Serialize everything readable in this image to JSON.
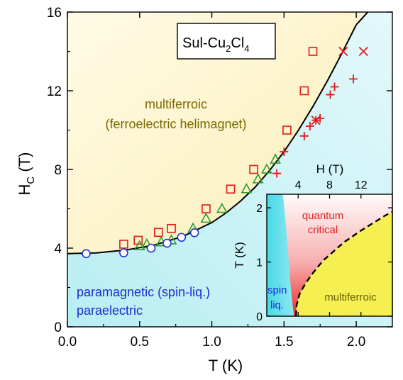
{
  "chart_data": [
    {
      "type": "scatter",
      "title": "Sul-Cu2Cl4",
      "xlabel": "T (K)",
      "ylabel": "HC (T)",
      "xlim": [
        0,
        2.25
      ],
      "ylim": [
        0,
        16
      ],
      "xticks": [
        0.0,
        0.5,
        1.0,
        1.5,
        2.0
      ],
      "xtick_labels": [
        "0.0",
        "0.5",
        "1.0",
        "1.5",
        "2.0"
      ],
      "yticks": [
        0,
        4,
        8,
        12,
        16
      ],
      "ytick_labels": [
        "0",
        "4",
        "8",
        "12",
        "16"
      ],
      "grid": false,
      "region_labels": {
        "multiferroic_line1": "multiferroic",
        "multiferroic_line2": "(ferroelectric helimagnet)",
        "paramagnetic_line1": "paramagnetic (spin-liq.)",
        "paramagnetic_line2": "paraelectric"
      },
      "colors": {
        "multiferroic_region": "#fdf6cc",
        "paramagnetic_region": "#c9f1f4",
        "boundary": "#000000",
        "squares": "#e01b1b",
        "plus": "#e01b1b",
        "cross": "#e01b1b",
        "triangles": "#2e9a2e",
        "circles": "#2233cc",
        "multiferroic_text": "#7a6a00",
        "paramagnetic_text": "#1c2ad8"
      },
      "boundary_curve": {
        "x": [
          0.0,
          0.2,
          0.4,
          0.6,
          0.8,
          1.0,
          1.1,
          1.2,
          1.3,
          1.4,
          1.5,
          1.6,
          1.7,
          1.8,
          1.9,
          2.0,
          2.08
        ],
        "y": [
          3.72,
          3.76,
          3.9,
          4.15,
          4.6,
          5.3,
          5.8,
          6.4,
          7.1,
          7.95,
          8.9,
          10.0,
          11.2,
          12.5,
          13.9,
          15.35,
          16.0
        ]
      },
      "series": [
        {
          "marker": "square",
          "x": [
            0.39,
            0.49,
            0.63,
            0.72,
            0.96,
            1.13,
            1.29,
            1.52,
            1.64,
            1.7
          ],
          "y": [
            4.2,
            4.4,
            4.8,
            5.0,
            6.0,
            7.0,
            8.0,
            10.0,
            12.0,
            14.0
          ]
        },
        {
          "marker": "plus",
          "x": [
            1.45,
            1.5,
            1.64,
            1.68,
            1.72,
            1.75,
            1.82,
            1.85,
            1.98
          ],
          "y": [
            7.8,
            8.9,
            9.7,
            10.2,
            10.5,
            10.6,
            11.8,
            12.2,
            12.6
          ]
        },
        {
          "marker": "cross",
          "x": [
            1.72,
            1.91,
            2.05
          ],
          "y": [
            10.5,
            14.0,
            14.0
          ]
        },
        {
          "marker": "triangle",
          "x": [
            0.5,
            0.55,
            0.65,
            0.72,
            0.87,
            0.96,
            1.07,
            1.24,
            1.32,
            1.38,
            1.44
          ],
          "y": [
            4.1,
            4.2,
            4.3,
            4.4,
            5.0,
            5.5,
            6.0,
            7.0,
            7.5,
            8.0,
            8.5
          ]
        },
        {
          "marker": "circle",
          "x": [
            0.13,
            0.39,
            0.58,
            0.69,
            0.79,
            0.88
          ],
          "y": [
            3.72,
            3.76,
            4.0,
            4.25,
            4.55,
            4.78
          ]
        }
      ]
    },
    {
      "type": "area",
      "xlabel": "H (T)",
      "ylabel": "T (K)",
      "xlim": [
        0,
        16
      ],
      "ylim": [
        0,
        2.25
      ],
      "xticks": [
        4,
        8,
        12
      ],
      "xtick_labels": [
        "4",
        "8",
        "12"
      ],
      "yticks": [
        0,
        1,
        2
      ],
      "ytick_labels": [
        "0",
        "1",
        "2"
      ],
      "region_labels": {
        "quantum_line1": "quantum",
        "quantum_line2": "critical",
        "spin_line1": "spin",
        "spin_line2": "liq.",
        "multiferroic": "multiferroic"
      },
      "colors": {
        "spin_region": "#4fdbe7",
        "critical_region": "#ee2a2a",
        "multiferroic_region": "#f6ef52",
        "quantum_text": "#e02020",
        "spin_text": "#1c2ad8",
        "multiferroic_text": "#7a6a00"
      },
      "boundary_curve": {
        "x": [
          3.72,
          3.8,
          4.2,
          5.0,
          6.0,
          7.2,
          8.0,
          9.0,
          10.0,
          11.0,
          12.0,
          13.0,
          14.0,
          15.0,
          16.0
        ],
        "y": [
          0.0,
          0.2,
          0.42,
          0.62,
          0.82,
          1.03,
          1.13,
          1.26,
          1.38,
          1.48,
          1.58,
          1.67,
          1.76,
          1.85,
          1.93
        ]
      }
    }
  ]
}
